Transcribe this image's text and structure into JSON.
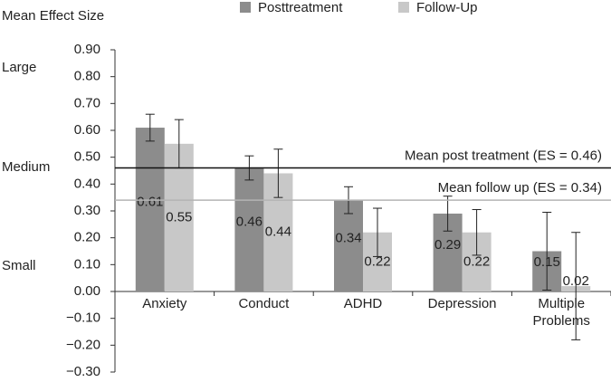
{
  "chart_data": {
    "type": "bar",
    "y_axis_label": "Mean Effect Size",
    "size_labels": [
      "Large",
      "Medium",
      "Small"
    ],
    "categories": [
      "Anxiety",
      "Conduct",
      "ADHD",
      "Depression",
      "Multiple Problems"
    ],
    "series": [
      {
        "name": "Posttreatment",
        "color": "#8c8c8c",
        "values": [
          0.61,
          0.46,
          0.34,
          0.29,
          0.15
        ],
        "errors": [
          0.05,
          0.045,
          0.05,
          0.065,
          0.145
        ]
      },
      {
        "name": "Follow-Up",
        "color": "#c8c8c8",
        "values": [
          0.55,
          0.44,
          0.22,
          0.22,
          0.02
        ],
        "errors": [
          0.09,
          0.09,
          0.09,
          0.085,
          0.2
        ]
      }
    ],
    "reference_lines": [
      {
        "label": "Mean post treatment (ES = 0.46)",
        "value": 0.46,
        "color": "#111111"
      },
      {
        "label": "Mean follow up (ES = 0.34)",
        "value": 0.34,
        "color": "#b4b4b4"
      }
    ],
    "ylim": [
      -0.3,
      0.9
    ],
    "yticks": [
      {
        "value": -0.3,
        "label": "−0.30"
      },
      {
        "value": -0.2,
        "label": "−0.20"
      },
      {
        "value": -0.1,
        "label": "−0.10"
      },
      {
        "value": 0,
        "label": "0.00"
      },
      {
        "value": 0.1,
        "label": "0.10"
      },
      {
        "value": 0.2,
        "label": "0.20"
      },
      {
        "value": 0.3,
        "label": "0.30"
      },
      {
        "value": 0.4,
        "label": "0.40"
      },
      {
        "value": 0.5,
        "label": "0.50"
      },
      {
        "value": 0.6,
        "label": "0.60"
      },
      {
        "value": 0.7,
        "label": "0.70"
      },
      {
        "value": 0.8,
        "label": "0.80"
      },
      {
        "value": 0.9,
        "label": "0.90"
      }
    ]
  }
}
